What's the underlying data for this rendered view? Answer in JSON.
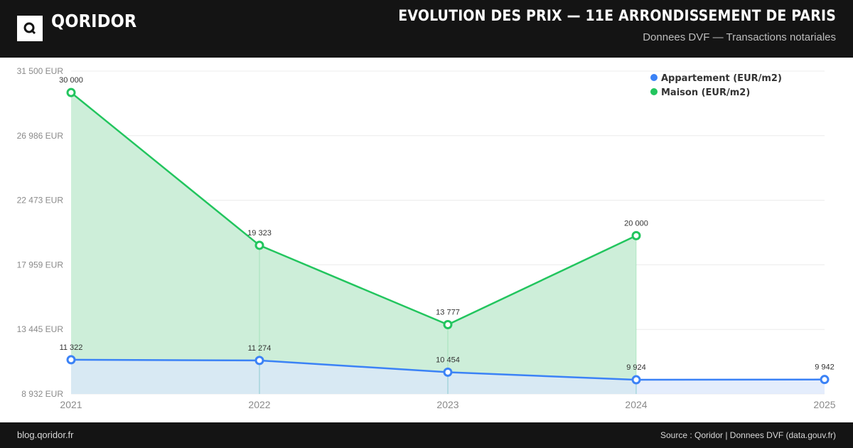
{
  "header": {
    "logo_letter": "Q",
    "brand": "QORIDOR",
    "title": "EVOLUTION DES PRIX — 11E ARRONDISSEMENT DE PARIS",
    "subtitle": "Donnees DVF — Transactions notariales"
  },
  "footer": {
    "site": "blog.qoridor.fr",
    "source": "Source : Qoridor | Donnees DVF (data.gouv.fr)"
  },
  "chart_data": {
    "type": "area",
    "x": [
      "2021",
      "2022",
      "2023",
      "2024",
      "2025"
    ],
    "ylim": [
      8932,
      31500
    ],
    "y_ticks": [
      8932,
      13445,
      17959,
      22473,
      26986,
      31500
    ],
    "y_tick_labels": [
      "8 932 EUR",
      "13 445 EUR",
      "17 959 EUR",
      "22 473 EUR",
      "26 986 EUR",
      "31 500 EUR"
    ],
    "grid": true,
    "legend_position": "top-right",
    "series": [
      {
        "name": "Appartement (EUR/m2)",
        "color": "#3b82f6",
        "fill": "#dbe7fb",
        "values": [
          11322,
          11274,
          10454,
          9924,
          9942
        ],
        "labels": [
          "11 322",
          "11 274",
          "10 454",
          "9 924",
          "9 942"
        ]
      },
      {
        "name": "Maison (EUR/m2)",
        "color": "#22c55e",
        "fill": "#cdeed9",
        "values": [
          30000,
          19323,
          13777,
          20000,
          null
        ],
        "labels": [
          "30 000",
          "19 323",
          "13 777",
          "20 000",
          ""
        ]
      }
    ]
  }
}
